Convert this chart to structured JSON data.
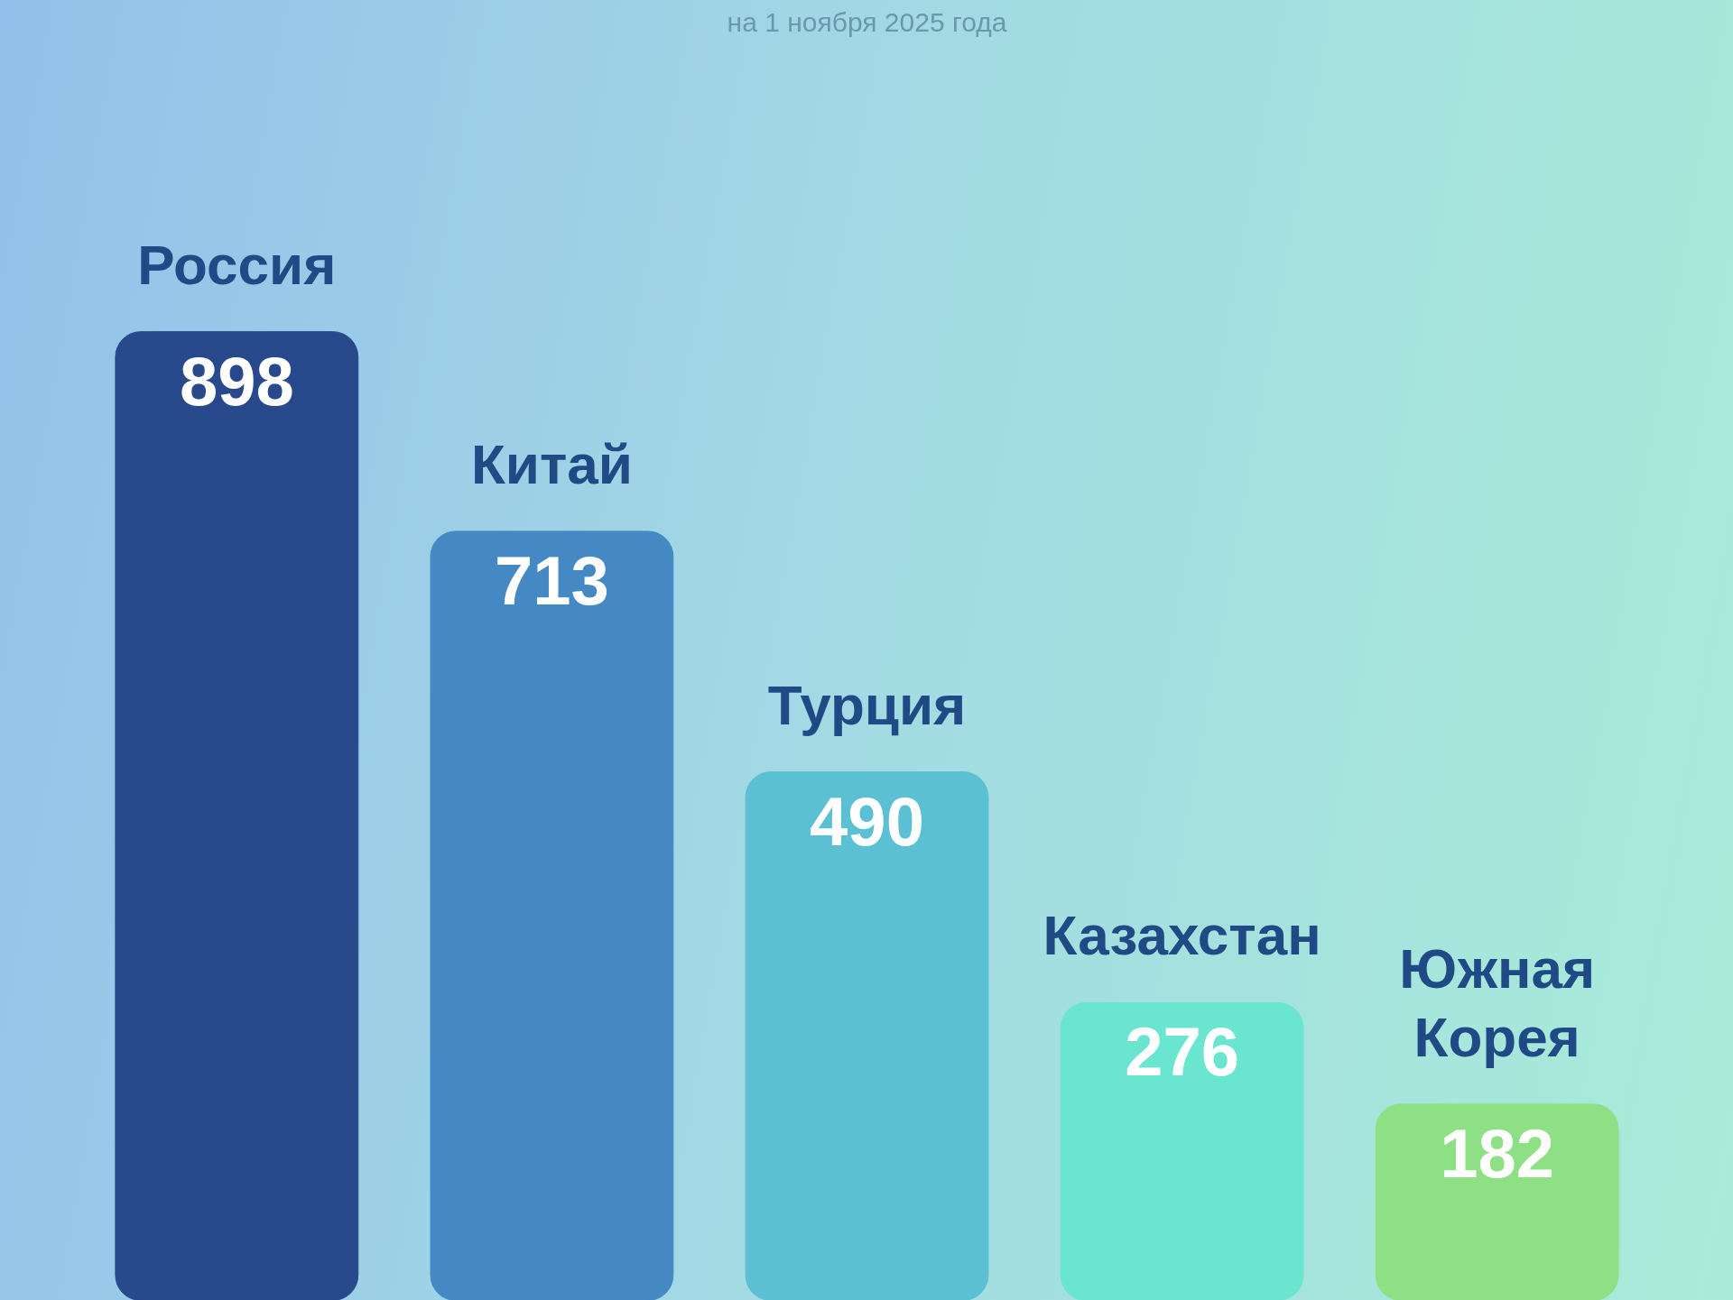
{
  "chart_data": {
    "type": "bar",
    "subtitle": "на 1 ноября 2025 года",
    "categories": [
      "Россия",
      "Китай",
      "Турция",
      "Казахстан",
      "Южная Корея"
    ],
    "values": [
      898,
      713,
      490,
      276,
      182
    ],
    "colors": [
      "#284a8c",
      "#4488c4",
      "#5bc0d3",
      "#6ae6d0",
      "#8ee084"
    ],
    "data_labels": true,
    "grid": false
  }
}
